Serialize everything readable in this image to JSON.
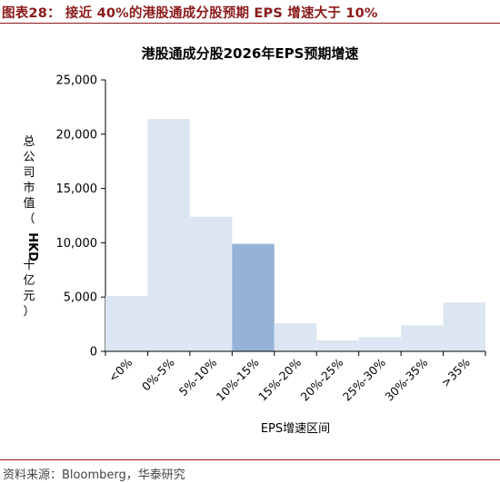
{
  "figure": {
    "title": "图表28：  接近 40%的港股通成分股预期 EPS 增速大于 10%",
    "source": "资料来源：Bloomberg，华泰研究"
  },
  "colors": {
    "accent": "#8b1a1a",
    "bar": "#dce6f2",
    "bar_highlight": "#95b3d7"
  },
  "chart_data": {
    "type": "bar",
    "title": "港股通成分股2026年EPS预期增速",
    "xlabel": "EPS增速区间",
    "ylabel": "总公司市值（HKD十亿元）",
    "ylabel_chars": [
      "总",
      "公",
      "司",
      "市",
      "值",
      "（",
      "HKD",
      "十",
      "亿",
      "元",
      "）"
    ],
    "categories": [
      "<0%",
      "0%-5%",
      "5%-10%",
      "10%-15%",
      "15%-20%",
      "20%-25%",
      "25%-30%",
      "30%-35%",
      ">35%"
    ],
    "values": [
      5100,
      21400,
      12400,
      9900,
      2600,
      1000,
      1300,
      2400,
      4500
    ],
    "highlight_index": 3,
    "ylim": [
      0,
      25000
    ],
    "yticks": [
      0,
      5000,
      10000,
      15000,
      20000,
      25000
    ],
    "ytick_labels": [
      "0",
      "5,000",
      "10,000",
      "15,000",
      "20,000",
      "25,000"
    ],
    "grid": false,
    "legend": "none"
  }
}
